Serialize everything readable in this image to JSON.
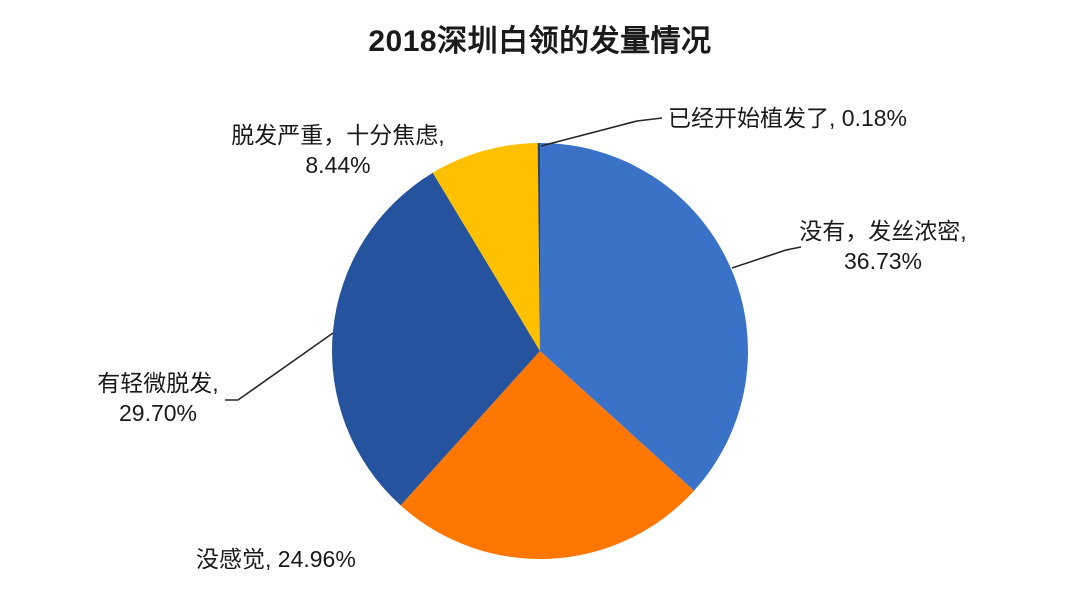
{
  "title": "2018深圳白领的发量情况",
  "chart_data": {
    "type": "pie",
    "title": "2018深圳白领的发量情况",
    "slices": [
      {
        "label": "没有，发丝浓密",
        "value": 36.73,
        "color": "#3A72C8"
      },
      {
        "label": "没感觉",
        "value": 24.96,
        "color": "#FF7703"
      },
      {
        "label": "有轻微脱发",
        "value": 29.7,
        "color": "#25539E"
      },
      {
        "label": "脱发严重，十分焦虑",
        "value": 8.44,
        "color": "#FFC000"
      },
      {
        "label": "已经开始植发了",
        "value": 0.18,
        "color": "#264478"
      }
    ],
    "start_angle_deg": 0,
    "direction": "clockwise",
    "legend": "none",
    "label_style": "outside-callout",
    "background": "#ffffff"
  },
  "labels": {
    "transplant": {
      "text": "已经开始植发了, 0.18%"
    },
    "severe": {
      "line1": "脱发严重，十分焦虑,",
      "line2": "8.44%"
    },
    "none": {
      "line1": "没有，发丝浓密,",
      "line2": "36.73%"
    },
    "slight": {
      "line1": "有轻微脱发,",
      "line2": "29.70%"
    },
    "nofeel": {
      "text": "没感觉, 24.96%"
    }
  }
}
